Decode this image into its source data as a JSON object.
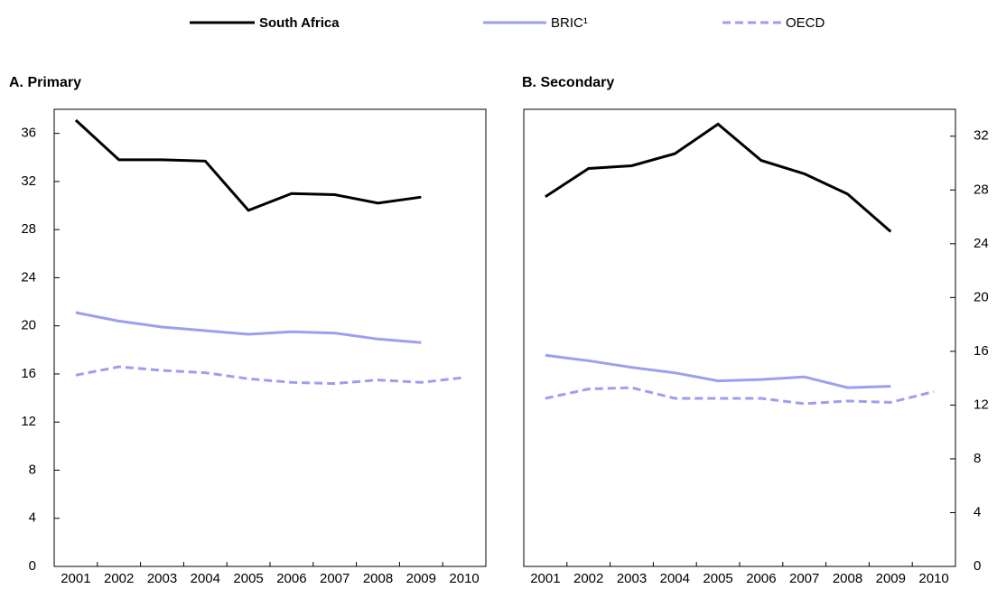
{
  "chart_data": [
    {
      "type": "line",
      "title": "A. Primary",
      "yaxis_side": "left",
      "categories": [
        "2001",
        "2002",
        "2003",
        "2004",
        "2005",
        "2006",
        "2007",
        "2008",
        "2009",
        "2010"
      ],
      "ylim": [
        0,
        38
      ],
      "yticks": [
        0,
        4,
        8,
        12,
        16,
        20,
        24,
        28,
        32,
        36
      ],
      "series": [
        {
          "name": "South Africa",
          "color": "#000000",
          "dash": false,
          "values": [
            37.1,
            33.8,
            33.8,
            33.7,
            29.6,
            31.0,
            30.9,
            30.2,
            30.7,
            null
          ]
        },
        {
          "name": "BRIC¹",
          "color": "#9e9ef0",
          "dash": false,
          "values": [
            21.1,
            20.4,
            19.9,
            19.6,
            19.3,
            19.5,
            19.4,
            18.9,
            18.6,
            null
          ]
        },
        {
          "name": "OECD",
          "color": "#9e9ef0",
          "dash": true,
          "values": [
            15.9,
            16.6,
            16.3,
            16.1,
            15.6,
            15.3,
            15.2,
            15.5,
            15.3,
            15.7
          ]
        }
      ]
    },
    {
      "type": "line",
      "title": "B. Secondary",
      "yaxis_side": "right",
      "categories": [
        "2001",
        "2002",
        "2003",
        "2004",
        "2005",
        "2006",
        "2007",
        "2008",
        "2009",
        "2010"
      ],
      "ylim": [
        0,
        34
      ],
      "yticks": [
        0,
        4,
        8,
        12,
        16,
        20,
        24,
        28,
        32
      ],
      "series": [
        {
          "color": "#000000",
          "dash": false,
          "values": [
            27.5,
            29.6,
            29.8,
            30.7,
            32.9,
            30.2,
            29.2,
            27.7,
            24.9,
            null
          ]
        },
        {
          "color": "#9e9ef0",
          "dash": false,
          "values": [
            15.7,
            15.3,
            14.8,
            14.4,
            13.8,
            13.9,
            14.1,
            13.3,
            13.4,
            null
          ]
        },
        {
          "color": "#9e9ef0",
          "dash": true,
          "values": [
            12.5,
            13.2,
            13.3,
            12.5,
            12.5,
            12.5,
            12.1,
            12.3,
            12.2,
            13.0
          ]
        }
      ]
    }
  ]
}
